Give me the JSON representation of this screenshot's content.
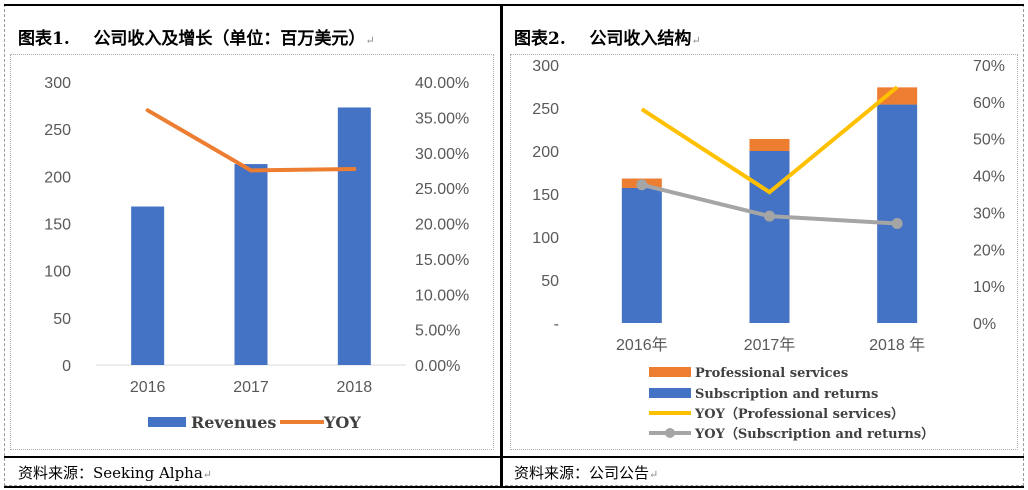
{
  "left": {
    "caption_label": "图表1.",
    "caption_title": "公司收入及增长（单位：百万美元）",
    "source": "资料来源：Seeking Alpha"
  },
  "right": {
    "caption_label": "图表2.",
    "caption_title": "公司收入结构",
    "source": "资料来源：公司公告"
  },
  "paragraph_mark": "↵",
  "colors": {
    "blue": "#4472C4",
    "orange": "#ED7D31",
    "yellow": "#FFC000",
    "gray": "#A5A5A5"
  },
  "chart_data": [
    {
      "type": "bar",
      "categories": [
        "2016",
        "2017",
        "2018"
      ],
      "series": [
        {
          "name": "Revenues",
          "type": "bar",
          "axis": "left",
          "values": [
            168,
            213,
            273
          ]
        },
        {
          "name": "YOY",
          "type": "line",
          "axis": "right",
          "values": [
            0.36,
            0.275,
            0.277
          ]
        }
      ],
      "y_left": {
        "range": [
          0,
          300
        ],
        "ticks": [
          "0",
          "50",
          "100",
          "150",
          "200",
          "250",
          "300"
        ]
      },
      "y_right": {
        "range": [
          0,
          0.4
        ],
        "ticks": [
          "0.00%",
          "5.00%",
          "10.00%",
          "15.00%",
          "20.00%",
          "25.00%",
          "30.00%",
          "35.00%",
          "40.00%"
        ]
      },
      "legend_position": "bottom",
      "grid": false
    },
    {
      "type": "bar",
      "stacked": true,
      "categories": [
        "2016年",
        "2017年",
        "2018 年"
      ],
      "series": [
        {
          "name": "Professional services",
          "type": "bar",
          "axis": "left",
          "values": [
            11,
            14,
            20
          ]
        },
        {
          "name": "Subscription and returns",
          "type": "bar",
          "axis": "left",
          "values": [
            157,
            200,
            254
          ]
        },
        {
          "name": "YOY（Professional services）",
          "type": "line",
          "axis": "right",
          "values": [
            0.58,
            0.355,
            0.64
          ]
        },
        {
          "name": "YOY（Subscription and returns）",
          "type": "line",
          "axis": "right",
          "markers": true,
          "values": [
            0.375,
            0.29,
            0.27
          ]
        }
      ],
      "y_left": {
        "range": [
          0,
          300
        ],
        "ticks": [
          "-",
          "50",
          "100",
          "150",
          "200",
          "250",
          "300"
        ]
      },
      "y_right": {
        "range": [
          0,
          0.7
        ],
        "ticks": [
          "0%",
          "10%",
          "20%",
          "30%",
          "40%",
          "50%",
          "60%",
          "70%"
        ]
      },
      "legend_position": "bottom",
      "grid": false
    }
  ]
}
